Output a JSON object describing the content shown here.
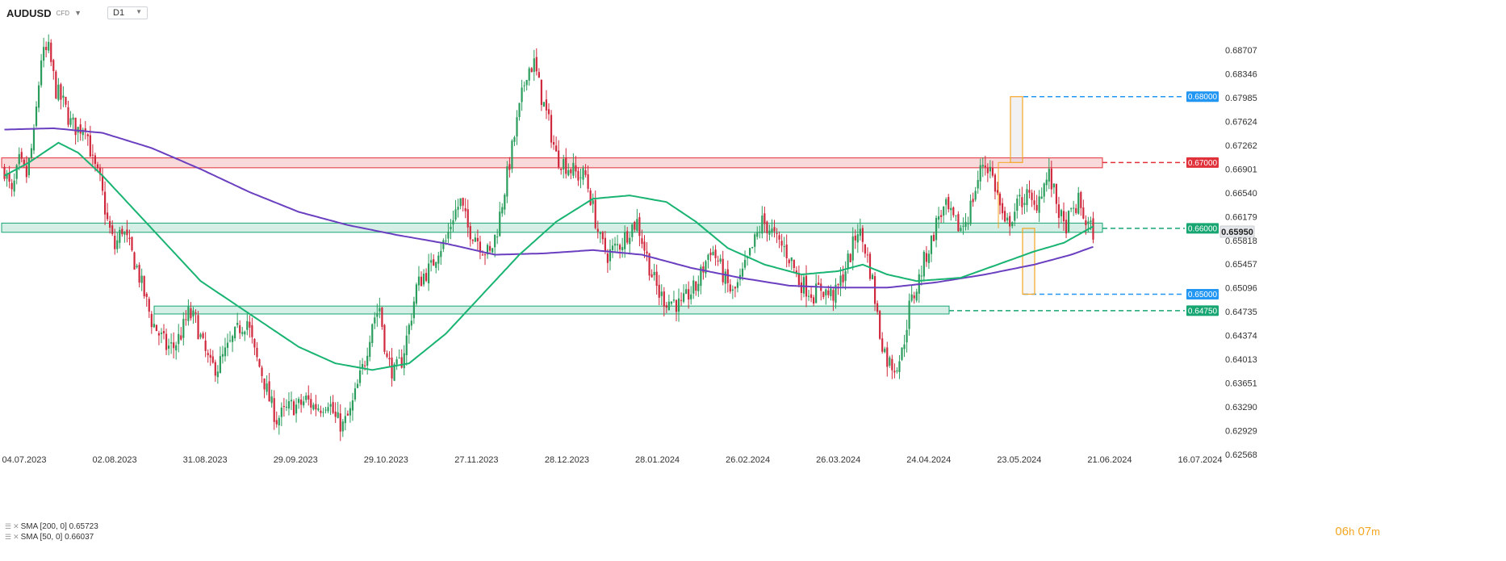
{
  "toolbar": {
    "symbol": "AUDUSD",
    "instrument_type": "CFD",
    "timeframe": "D1"
  },
  "indicators": [
    {
      "label": "SMA [200, 0] 0.65723",
      "color": "#6a3fc0"
    },
    {
      "label": "SMA [50, 0] 0.66037",
      "color": "#19b372"
    }
  ],
  "timer": {
    "h": "06",
    "h_unit": "h",
    "m": "07",
    "m_unit": "m"
  },
  "icons": [
    "menu-icon",
    "close-icon",
    "chevron-down-icon"
  ],
  "colors": {
    "bull": "#2a9d5c",
    "bear": "#d0283c",
    "sma200": "#6a3fc0",
    "sma50": "#19b372",
    "resistance": "#e0303a",
    "support": "#17a672",
    "target": "#2196f3",
    "current_price_tag": "#e6e8ec"
  },
  "chart_data": {
    "type": "candlestick",
    "symbol": "AUDUSD",
    "timeframe": "D1",
    "x_tick_labels": [
      "04.07.2023",
      "02.08.2023",
      "31.08.2023",
      "29.09.2023",
      "29.10.2023",
      "27.11.2023",
      "28.12.2023",
      "28.01.2024",
      "26.02.2024",
      "26.03.2024",
      "24.04.2024",
      "23.05.2024",
      "21.06.2024",
      "16.07.2024"
    ],
    "y_tick_labels": [
      "0.68707",
      "0.68346",
      "0.67985",
      "0.67624",
      "0.67262",
      "0.66901",
      "0.66540",
      "0.66179",
      "0.65818",
      "0.65457",
      "0.65096",
      "0.64735",
      "0.64374",
      "0.64013",
      "0.63651",
      "0.63290",
      "0.62929",
      "0.62568"
    ],
    "ylim": [
      0.6253,
      0.691
    ],
    "grid": false,
    "levels": [
      {
        "label": "0.68000",
        "price": 0.68,
        "color": "#2196f3",
        "style": "dashed"
      },
      {
        "label": "0.67000",
        "price": 0.67,
        "color": "#e0303a",
        "style": "dashed",
        "zone": [
          0.6692,
          0.6707
        ]
      },
      {
        "label": "0.66000",
        "price": 0.66,
        "color": "#17a672",
        "style": "dashed",
        "zone": [
          0.6594,
          0.6608
        ]
      },
      {
        "label": "0.65000",
        "price": 0.65,
        "color": "#2196f3",
        "style": "dashed"
      },
      {
        "label": "0.64750",
        "price": 0.6475,
        "color": "#17a672",
        "style": "dashed",
        "zone": [
          0.647,
          0.6482
        ]
      }
    ],
    "current_price": {
      "label": "0.65950",
      "value": 0.6595
    },
    "ohlc_anchors": [
      [
        0,
        0.669
      ],
      [
        3,
        0.665
      ],
      [
        6,
        0.67
      ],
      [
        9,
        0.668
      ],
      [
        12,
        0.674
      ],
      [
        15,
        0.686
      ],
      [
        18,
        0.687
      ],
      [
        21,
        0.681
      ],
      [
        24,
        0.679
      ],
      [
        27,
        0.676
      ],
      [
        30,
        0.675
      ],
      [
        33,
        0.676
      ],
      [
        36,
        0.67
      ],
      [
        39,
        0.667
      ],
      [
        42,
        0.661
      ],
      [
        45,
        0.657
      ],
      [
        48,
        0.66
      ],
      [
        51,
        0.657
      ],
      [
        54,
        0.654
      ],
      [
        57,
        0.65
      ],
      [
        60,
        0.646
      ],
      [
        63,
        0.644
      ],
      [
        66,
        0.642
      ],
      [
        69,
        0.642
      ],
      [
        72,
        0.644
      ],
      [
        75,
        0.647
      ],
      [
        78,
        0.646
      ],
      [
        81,
        0.642
      ],
      [
        84,
        0.639
      ],
      [
        87,
        0.639
      ],
      [
        90,
        0.641
      ],
      [
        93,
        0.643
      ],
      [
        96,
        0.645
      ],
      [
        99,
        0.646
      ],
      [
        102,
        0.641
      ],
      [
        105,
        0.638
      ],
      [
        108,
        0.634
      ],
      [
        111,
        0.631
      ],
      [
        114,
        0.632
      ],
      [
        117,
        0.633
      ],
      [
        120,
        0.633
      ],
      [
        123,
        0.634
      ],
      [
        126,
        0.633
      ],
      [
        129,
        0.633
      ],
      [
        132,
        0.634
      ],
      [
        135,
        0.631
      ],
      [
        138,
        0.63
      ],
      [
        141,
        0.632
      ],
      [
        144,
        0.636
      ],
      [
        147,
        0.64
      ],
      [
        150,
        0.646
      ],
      [
        153,
        0.648
      ],
      [
        156,
        0.64
      ],
      [
        159,
        0.638
      ],
      [
        162,
        0.64
      ],
      [
        165,
        0.645
      ],
      [
        168,
        0.651
      ],
      [
        171,
        0.653
      ],
      [
        174,
        0.654
      ],
      [
        177,
        0.657
      ],
      [
        180,
        0.658
      ],
      [
        183,
        0.662
      ],
      [
        186,
        0.664
      ],
      [
        189,
        0.66
      ],
      [
        192,
        0.659
      ],
      [
        195,
        0.657
      ],
      [
        198,
        0.656
      ],
      [
        201,
        0.66
      ],
      [
        204,
        0.666
      ],
      [
        207,
        0.672
      ],
      [
        210,
        0.678
      ],
      [
        213,
        0.684
      ],
      [
        216,
        0.685
      ],
      [
        219,
        0.68
      ],
      [
        222,
        0.676
      ],
      [
        225,
        0.671
      ],
      [
        228,
        0.67
      ],
      [
        231,
        0.669
      ],
      [
        234,
        0.668
      ],
      [
        237,
        0.668
      ],
      [
        240,
        0.663
      ],
      [
        243,
        0.658
      ],
      [
        246,
        0.656
      ],
      [
        249,
        0.657
      ],
      [
        252,
        0.658
      ],
      [
        255,
        0.66
      ],
      [
        258,
        0.661
      ],
      [
        261,
        0.657
      ],
      [
        264,
        0.653
      ],
      [
        267,
        0.65
      ],
      [
        270,
        0.649
      ],
      [
        273,
        0.649
      ],
      [
        276,
        0.648
      ],
      [
        279,
        0.65
      ],
      [
        282,
        0.651
      ],
      [
        285,
        0.654
      ],
      [
        288,
        0.657
      ],
      [
        291,
        0.655
      ],
      [
        294,
        0.652
      ],
      [
        297,
        0.65
      ],
      [
        300,
        0.652
      ],
      [
        303,
        0.655
      ],
      [
        306,
        0.658
      ],
      [
        309,
        0.661
      ],
      [
        312,
        0.66
      ],
      [
        315,
        0.658
      ],
      [
        318,
        0.657
      ],
      [
        321,
        0.655
      ],
      [
        324,
        0.652
      ],
      [
        327,
        0.651
      ],
      [
        330,
        0.65
      ],
      [
        333,
        0.651
      ],
      [
        336,
        0.65
      ],
      [
        339,
        0.65
      ],
      [
        342,
        0.653
      ],
      [
        345,
        0.656
      ],
      [
        348,
        0.66
      ],
      [
        351,
        0.657
      ],
      [
        354,
        0.652
      ],
      [
        357,
        0.644
      ],
      [
        360,
        0.64
      ],
      [
        363,
        0.639
      ],
      [
        366,
        0.641
      ],
      [
        369,
        0.648
      ],
      [
        372,
        0.651
      ],
      [
        375,
        0.655
      ],
      [
        378,
        0.658
      ],
      [
        381,
        0.662
      ],
      [
        384,
        0.663
      ],
      [
        387,
        0.661
      ],
      [
        390,
        0.66
      ],
      [
        393,
        0.662
      ],
      [
        396,
        0.666
      ],
      [
        399,
        0.67
      ],
      [
        402,
        0.669
      ],
      [
        405,
        0.665
      ],
      [
        408,
        0.66
      ],
      [
        411,
        0.662
      ],
      [
        414,
        0.664
      ],
      [
        417,
        0.665
      ],
      [
        420,
        0.663
      ],
      [
        423,
        0.666
      ],
      [
        426,
        0.668
      ],
      [
        429,
        0.664
      ],
      [
        432,
        0.66
      ],
      [
        435,
        0.662
      ],
      [
        438,
        0.664
      ],
      [
        441,
        0.661
      ],
      [
        444,
        0.6595
      ]
    ],
    "sma_50_anchors": [
      [
        0,
        0.668
      ],
      [
        10,
        0.67
      ],
      [
        22,
        0.673
      ],
      [
        30,
        0.6715
      ],
      [
        40,
        0.668
      ],
      [
        60,
        0.66
      ],
      [
        80,
        0.652
      ],
      [
        100,
        0.647
      ],
      [
        120,
        0.642
      ],
      [
        135,
        0.6395
      ],
      [
        150,
        0.6385
      ],
      [
        165,
        0.6395
      ],
      [
        180,
        0.644
      ],
      [
        195,
        0.65
      ],
      [
        210,
        0.656
      ],
      [
        225,
        0.661
      ],
      [
        240,
        0.6645
      ],
      [
        255,
        0.665
      ],
      [
        270,
        0.664
      ],
      [
        282,
        0.661
      ],
      [
        295,
        0.657
      ],
      [
        310,
        0.6545
      ],
      [
        325,
        0.653
      ],
      [
        340,
        0.6535
      ],
      [
        350,
        0.6545
      ],
      [
        360,
        0.653
      ],
      [
        372,
        0.652
      ],
      [
        390,
        0.6525
      ],
      [
        405,
        0.6545
      ],
      [
        420,
        0.6565
      ],
      [
        432,
        0.6578
      ],
      [
        444,
        0.6603
      ]
    ],
    "sma_200_anchors": [
      [
        0,
        0.675
      ],
      [
        20,
        0.6752
      ],
      [
        40,
        0.6745
      ],
      [
        60,
        0.6722
      ],
      [
        80,
        0.669
      ],
      [
        100,
        0.6655
      ],
      [
        120,
        0.6625
      ],
      [
        140,
        0.6605
      ],
      [
        160,
        0.659
      ],
      [
        180,
        0.6577
      ],
      [
        200,
        0.656
      ],
      [
        220,
        0.6562
      ],
      [
        240,
        0.6567
      ],
      [
        260,
        0.656
      ],
      [
        280,
        0.654
      ],
      [
        300,
        0.6525
      ],
      [
        320,
        0.6513
      ],
      [
        340,
        0.651
      ],
      [
        360,
        0.651
      ],
      [
        380,
        0.6518
      ],
      [
        400,
        0.653
      ],
      [
        420,
        0.6545
      ],
      [
        435,
        0.656
      ],
      [
        444,
        0.6572
      ]
    ],
    "annotations": [
      {
        "type": "measure-up",
        "from": 0.67,
        "to": 0.68
      },
      {
        "type": "measure-down",
        "from": 0.66,
        "to": 0.65
      }
    ]
  }
}
